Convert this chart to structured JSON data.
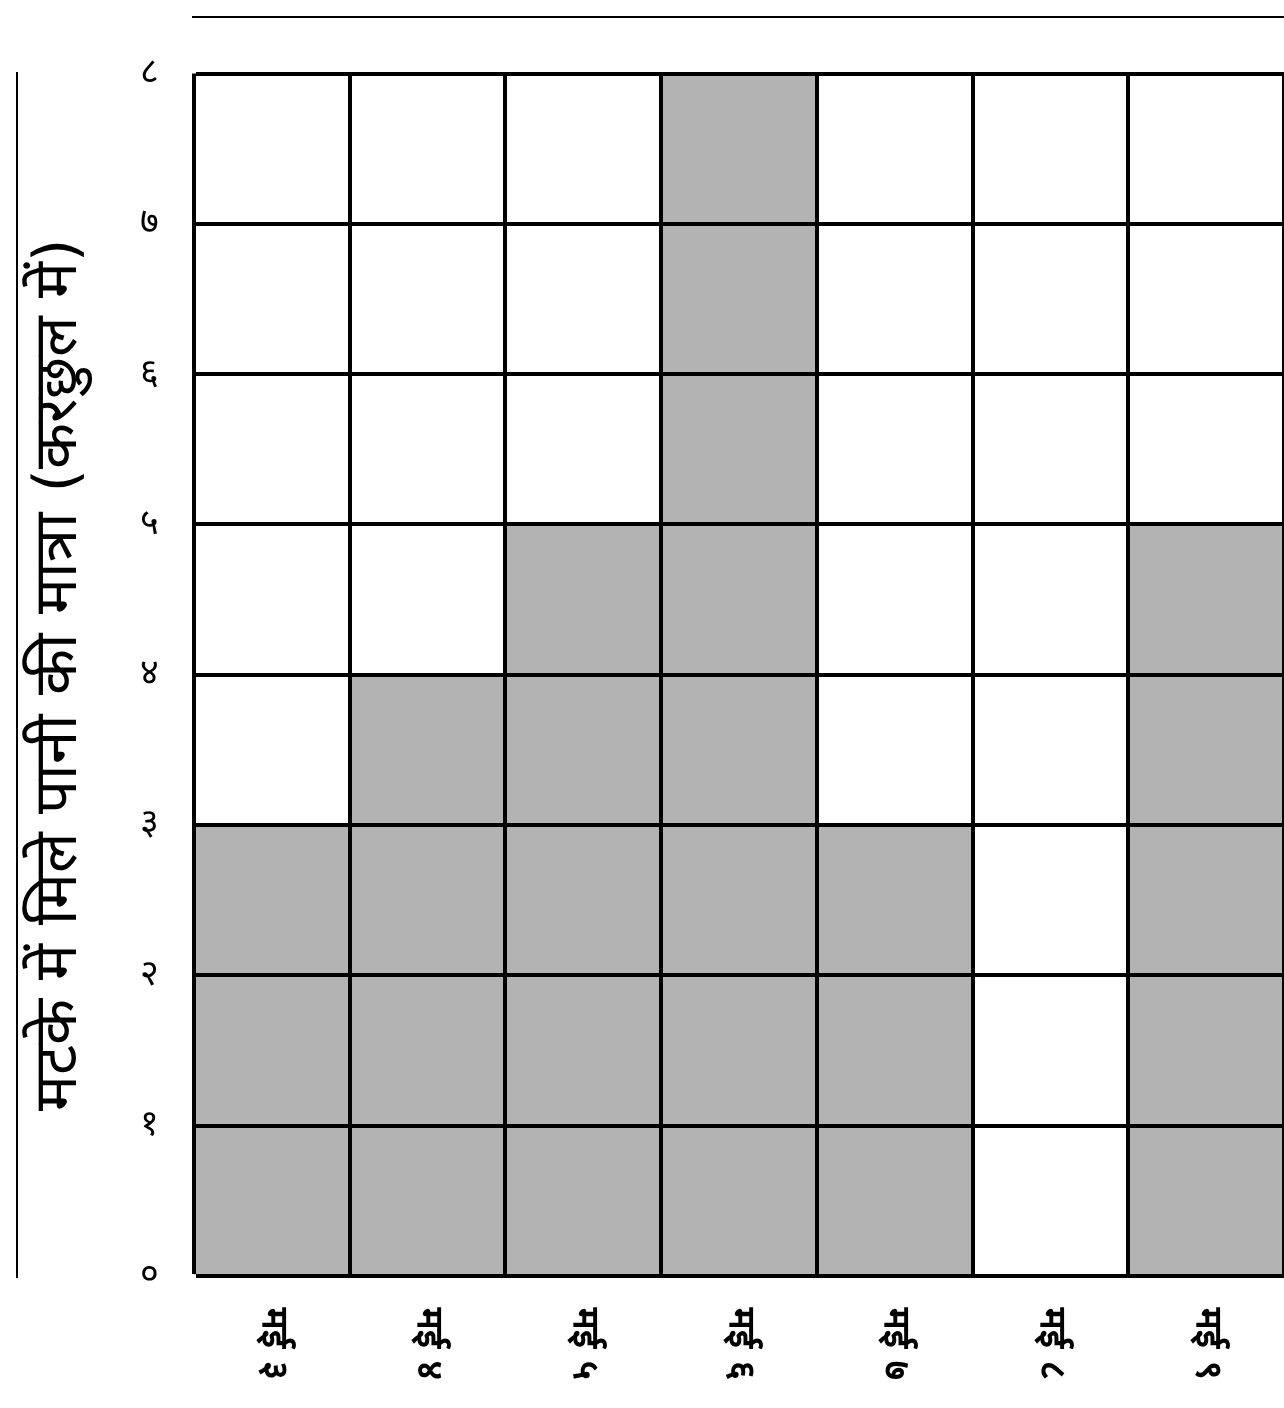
{
  "chart_data": {
    "type": "bar",
    "ylabel": "मटके में मिले पानी की मात्रा (करछुल में)",
    "categories": [
      "मई ३",
      "मई ४",
      "मई ५",
      "मई ६",
      "मई ७",
      "मई ८",
      "मई ९"
    ],
    "values": [
      3,
      4,
      5,
      8,
      3,
      0,
      5
    ],
    "color": "#b3b3b3",
    "ylim": [
      0,
      8
    ],
    "yticks": [
      {
        "value": 0,
        "label": "०"
      },
      {
        "value": 1,
        "label": "१"
      },
      {
        "value": 2,
        "label": "२"
      },
      {
        "value": 3,
        "label": "३"
      },
      {
        "value": 4,
        "label": "४"
      },
      {
        "value": 5,
        "label": "५"
      },
      {
        "value": 6,
        "label": "६"
      },
      {
        "value": 7,
        "label": "७"
      },
      {
        "value": 8,
        "label": "८"
      }
    ],
    "grid": true
  }
}
